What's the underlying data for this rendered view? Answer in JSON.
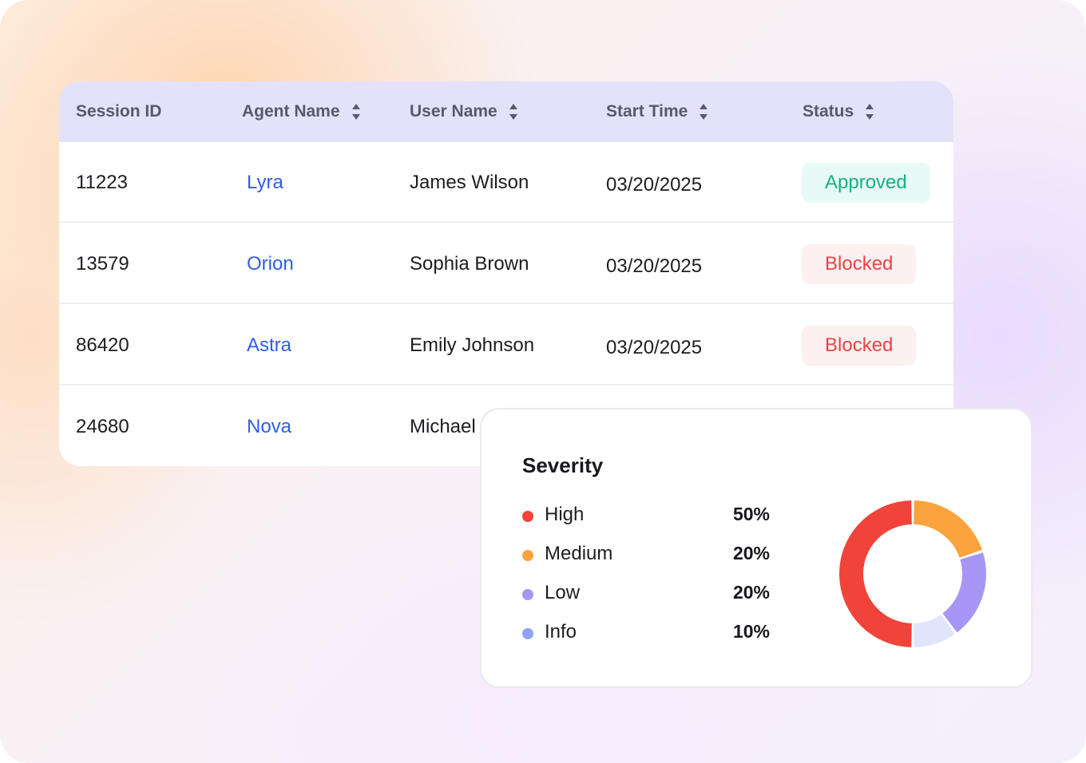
{
  "table": {
    "columns": [
      {
        "label": "Session ID",
        "sortable": false
      },
      {
        "label": "Agent Name",
        "sortable": true
      },
      {
        "label": "User Name",
        "sortable": true
      },
      {
        "label": "Start Time",
        "sortable": true
      },
      {
        "label": "Status",
        "sortable": true
      }
    ],
    "rows": [
      {
        "session_id": "11223",
        "agent": "Lyra",
        "user": "James Wilson",
        "start": "03/20/2025",
        "status": "Approved",
        "status_kind": "approved"
      },
      {
        "session_id": "13579",
        "agent": "Orion",
        "user": "Sophia Brown",
        "start": "03/20/2025",
        "status": "Blocked",
        "status_kind": "blocked"
      },
      {
        "session_id": "86420",
        "agent": "Astra",
        "user": "Emily Johnson",
        "start": "03/20/2025",
        "status": "Blocked",
        "status_kind": "blocked"
      },
      {
        "session_id": "24680",
        "agent": "Nova",
        "user": "Michael",
        "start": "",
        "status": "",
        "status_kind": ""
      }
    ],
    "colors": {
      "agent_link": "#2f5de6",
      "approved": "#14b27e",
      "blocked": "#e84444"
    }
  },
  "severity": {
    "title": "Severity",
    "items": [
      {
        "label": "High",
        "value": "50%",
        "color": "#f0433a"
      },
      {
        "label": "Medium",
        "value": "20%",
        "color": "#fba33d"
      },
      {
        "label": "Low",
        "value": "20%",
        "color": "#a796f6"
      },
      {
        "label": "Info",
        "value": "10%",
        "color": "#8fa2f4"
      }
    ]
  },
  "chart_data": {
    "type": "pie",
    "title": "Severity",
    "categories": [
      "High",
      "Medium",
      "Low",
      "Info"
    ],
    "values": [
      50,
      20,
      20,
      10
    ],
    "colors": [
      "#f0433a",
      "#fba33d",
      "#a796f6",
      "#e1e5fb"
    ],
    "donut": true,
    "legend": "left"
  }
}
